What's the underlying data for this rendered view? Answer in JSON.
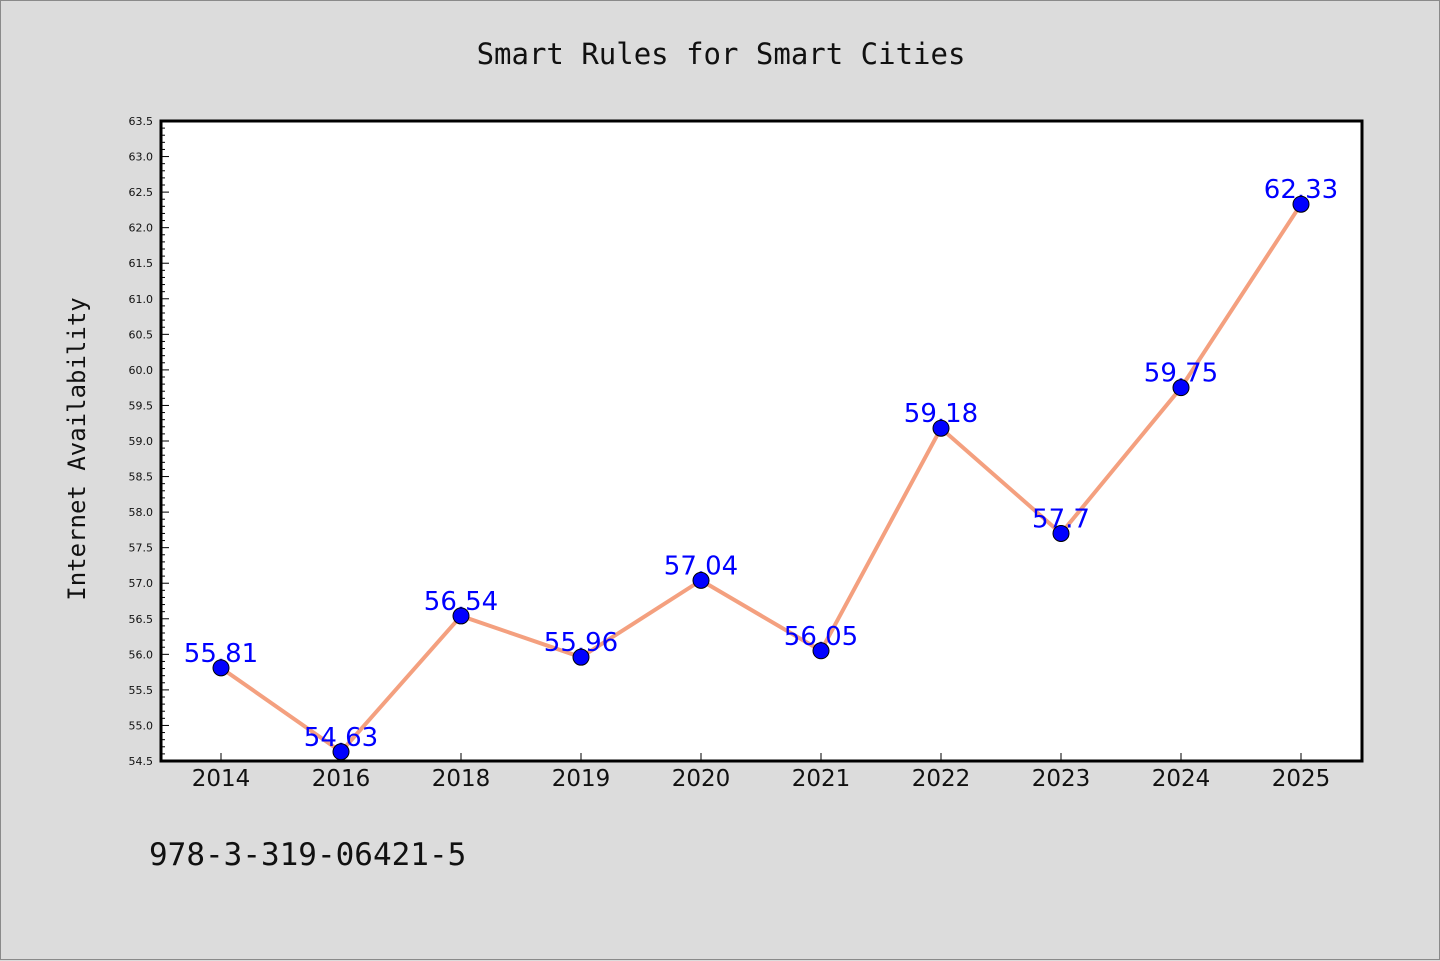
{
  "chart_data": {
    "type": "line",
    "title": "Smart Rules for Smart Cities",
    "xlabel": "",
    "ylabel": "Internet Availability",
    "categories": [
      "2014",
      "2016",
      "2018",
      "2019",
      "2020",
      "2021",
      "2022",
      "2023",
      "2024",
      "2025"
    ],
    "series": [
      {
        "values": [
          55.81,
          54.63,
          56.54,
          55.96,
          57.04,
          56.05,
          59.18,
          57.7,
          59.75,
          62.33
        ],
        "labels": [
          "55.81",
          "54.63",
          "56.54",
          "55.96",
          "57.04",
          "56.05",
          "59.18",
          "57.7",
          "59.75",
          "62.33"
        ],
        "line_color": "#f4a07f",
        "marker_color": "#0000ff",
        "label_color": "#0000ff"
      }
    ],
    "ylim": [
      54.5,
      63.5
    ],
    "yticks": [
      "54.5",
      "55.0",
      "55.5",
      "56.0",
      "56.5",
      "57.0",
      "57.5",
      "58.0",
      "58.5",
      "59.0",
      "59.5",
      "60.0",
      "60.5",
      "61.0",
      "61.5",
      "62.0",
      "62.5",
      "63.0",
      "63.5"
    ],
    "grid": false,
    "legend": "none"
  },
  "footer": {
    "code": "978-3-319-06421-5"
  },
  "colors": {
    "background": "#dcdcdc",
    "plot_background": "#ffffff",
    "frame": "#000000"
  }
}
